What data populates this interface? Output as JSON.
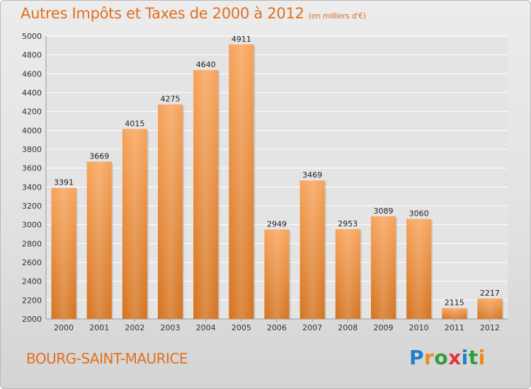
{
  "header": {
    "title": "Autres Impôts et Taxes de 2000 à 2012",
    "unit": "(en milliers d'€)"
  },
  "footer": {
    "city": "BOURG-SAINT-MAURICE",
    "logo_text": "Proxiti"
  },
  "colors": {
    "accent": "#e07020",
    "bar_light": "#f7a35a",
    "bar_dark": "#d4731f",
    "logo_letters": [
      "#1e7fd0",
      "#ee8b1a",
      "#2f9e3a",
      "#e2333a",
      "#1e7fd0",
      "#2f9e3a",
      "#ee8b1a"
    ]
  },
  "chart_data": {
    "type": "bar",
    "title": "Autres Impôts et Taxes de 2000 à 2012",
    "subtitle": "(en milliers d'€)",
    "categories": [
      "2000",
      "2001",
      "2002",
      "2003",
      "2004",
      "2005",
      "2006",
      "2007",
      "2008",
      "2009",
      "2010",
      "2011",
      "2012"
    ],
    "values": [
      3391,
      3669,
      4015,
      4275,
      4640,
      4911,
      2949,
      3469,
      2953,
      3089,
      3060,
      2115,
      2217
    ],
    "ylim": [
      2000,
      5000
    ],
    "yticks": [
      2000,
      2200,
      2400,
      2600,
      2800,
      3000,
      3200,
      3400,
      3600,
      3800,
      4000,
      4200,
      4400,
      4600,
      4800,
      5000
    ],
    "xlabel": "",
    "ylabel": "",
    "grid": true,
    "legend": "none"
  }
}
